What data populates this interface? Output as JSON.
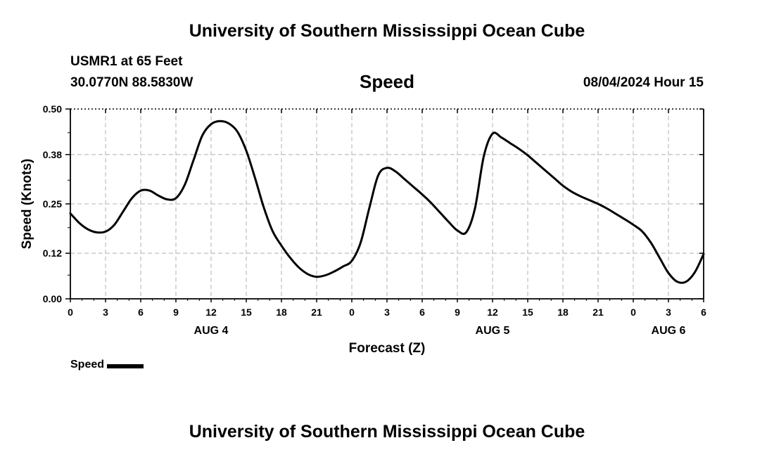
{
  "page": {
    "title": "University of Southern Mississippi Ocean Cube",
    "footer_title": "University of Southern Mississippi Ocean Cube",
    "station": "USMR1 at 65 Feet",
    "coordinates": "30.0770N  88.5830W",
    "datetime": "08/04/2024 Hour 15"
  },
  "chart_data": {
    "type": "line",
    "title": "Speed",
    "xlabel": "Forecast (Z)",
    "ylabel": "Speed (Knots)",
    "xlim": [
      0,
      54
    ],
    "ylim": [
      0,
      0.5
    ],
    "yticks": [
      0.0,
      0.12,
      0.25,
      0.38,
      0.5
    ],
    "ytick_labels": [
      "0.00",
      "0.12",
      "0.25",
      "0.38",
      "0.50"
    ],
    "xticks": [
      0,
      3,
      6,
      9,
      12,
      15,
      18,
      21,
      24,
      27,
      30,
      33,
      36,
      39,
      42,
      45,
      48,
      51,
      54
    ],
    "xtick_labels": [
      "0",
      "3",
      "6",
      "9",
      "12",
      "15",
      "18",
      "21",
      "0",
      "3",
      "6",
      "9",
      "12",
      "15",
      "18",
      "21",
      "0",
      "3",
      "6"
    ],
    "day_labels": [
      {
        "x": 12,
        "label": "AUG 4"
      },
      {
        "x": 36,
        "label": "AUG 5"
      },
      {
        "x": 51,
        "label": "AUG 6"
      }
    ],
    "grid": true,
    "legend_position": "bottom-left",
    "series": [
      {
        "name": "Speed",
        "color": "#000000",
        "x": [
          0,
          0.75,
          1.5,
          2.25,
          3,
          3.75,
          4.5,
          5.25,
          6,
          6.75,
          7.5,
          8.25,
          9,
          9.75,
          10.5,
          11.25,
          12,
          12.75,
          13.5,
          14.25,
          15,
          15.75,
          16.5,
          17.25,
          18,
          18.75,
          19.5,
          20.25,
          21,
          21.75,
          22.5,
          23.25,
          24,
          24.75,
          25.5,
          26.25,
          27,
          27.75,
          28.5,
          29.25,
          30,
          30.75,
          31.5,
          32.25,
          33,
          33.75,
          34.5,
          35.25,
          36,
          36.75,
          37.5,
          38.25,
          39,
          39.75,
          40.5,
          41.25,
          42,
          42.75,
          43.5,
          44.25,
          45,
          45.75,
          46.5,
          47.25,
          48,
          48.75,
          49.5,
          50.25,
          51,
          51.75,
          52.5,
          53.25,
          54
        ],
        "values": [
          0.225,
          0.2,
          0.183,
          0.175,
          0.177,
          0.195,
          0.23,
          0.265,
          0.285,
          0.285,
          0.272,
          0.262,
          0.265,
          0.3,
          0.365,
          0.43,
          0.46,
          0.468,
          0.462,
          0.44,
          0.39,
          0.318,
          0.24,
          0.178,
          0.14,
          0.108,
          0.082,
          0.065,
          0.058,
          0.062,
          0.072,
          0.085,
          0.1,
          0.148,
          0.24,
          0.325,
          0.345,
          0.335,
          0.315,
          0.295,
          0.275,
          0.253,
          0.228,
          0.203,
          0.18,
          0.175,
          0.238,
          0.375,
          0.435,
          0.425,
          0.41,
          0.395,
          0.378,
          0.358,
          0.338,
          0.318,
          0.298,
          0.282,
          0.27,
          0.26,
          0.25,
          0.238,
          0.224,
          0.21,
          0.195,
          0.178,
          0.148,
          0.108,
          0.068,
          0.045,
          0.045,
          0.07,
          0.118
        ]
      }
    ]
  }
}
